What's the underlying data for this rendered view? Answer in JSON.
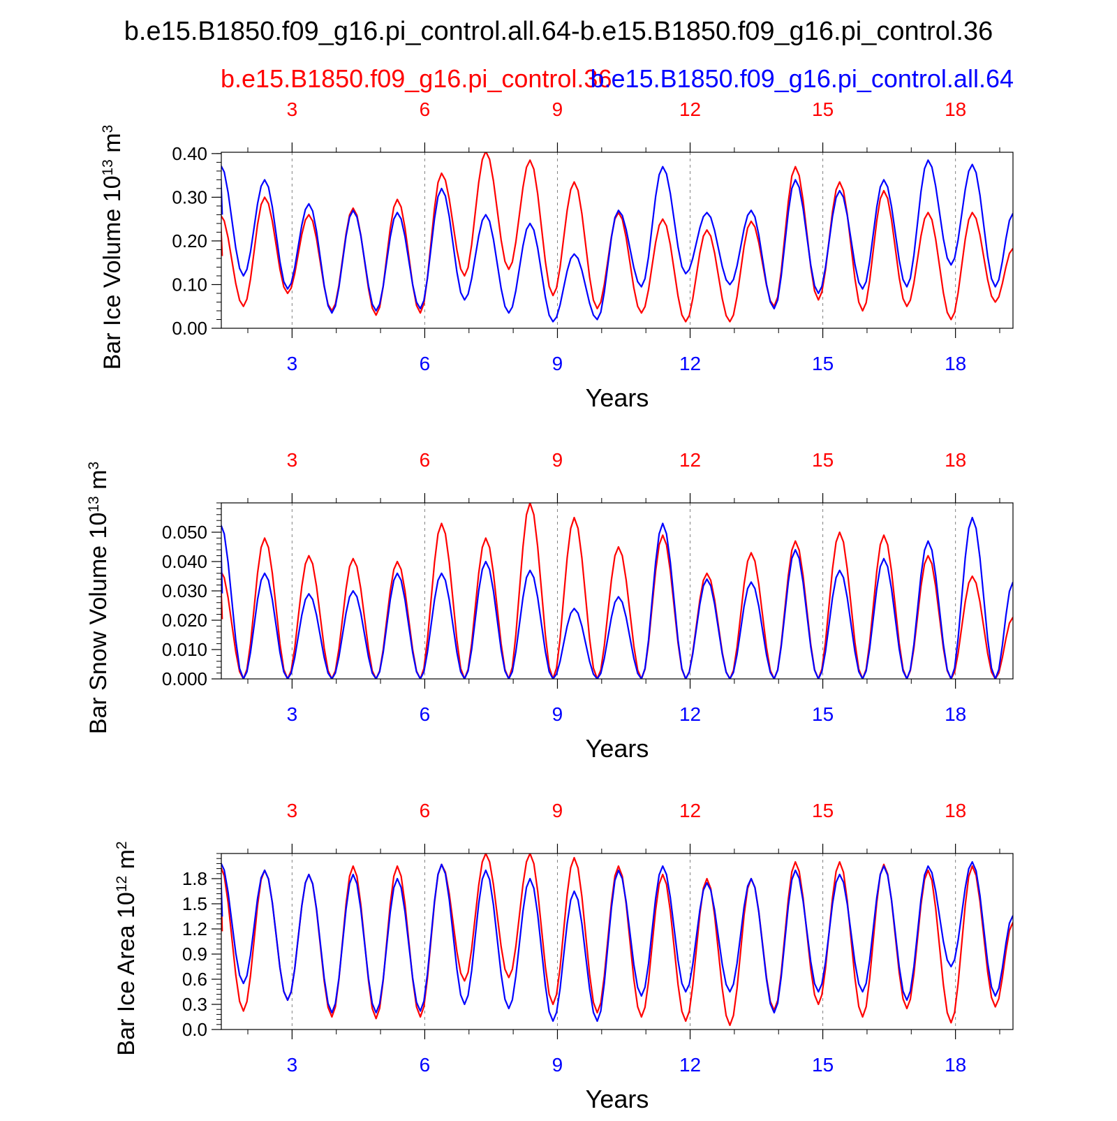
{
  "figure_title": "b.e15.B1850.f09_g16.pi_control.all.64-b.e15.B1850.f09_g16.pi_control.36",
  "legend": {
    "red_label": "b.e15.B1850.f09_g16.pi_control.36",
    "blue_label": "b.e15.B1850.f09_g16.pi_control.all.64"
  },
  "colors": {
    "red": "#ff0000",
    "blue": "#0000ff",
    "axis": "#000000",
    "grid": "#808080"
  },
  "chart_data": [
    {
      "type": "line",
      "name": "bar-ice-volume",
      "ylabel_main": "Bar Ice Volume 10",
      "ylabel_sup": "13",
      "ylabel_unit": " m",
      "ylabel_unit_sup": "3",
      "xlabel": "Years",
      "xlim": [
        1.4,
        19.3
      ],
      "ylim": [
        0.0,
        0.403
      ],
      "yticks": [
        0.0,
        0.1,
        0.2,
        0.3,
        0.4
      ],
      "ytick_labels": [
        "0.00",
        "0.10",
        "0.20",
        "0.30",
        "0.40"
      ],
      "yminor_step": 0.02,
      "xticks": [
        3,
        6,
        9,
        12,
        15,
        18
      ],
      "xtick_labels": [
        "3",
        "6",
        "9",
        "12",
        "15",
        "18"
      ],
      "series": [
        {
          "name": "b.e15.B1850.f09_g16.pi_control.36",
          "color": "red",
          "peaks": [
            [
              1.38,
              0.26
            ],
            [
              2.38,
              0.3
            ],
            [
              3.38,
              0.26
            ],
            [
              4.38,
              0.275
            ],
            [
              5.38,
              0.295
            ],
            [
              6.38,
              0.355
            ],
            [
              7.38,
              0.405
            ],
            [
              8.38,
              0.385
            ],
            [
              9.38,
              0.335
            ],
            [
              10.38,
              0.265
            ],
            [
              11.38,
              0.25
            ],
            [
              12.38,
              0.225
            ],
            [
              13.38,
              0.245
            ],
            [
              14.38,
              0.37
            ],
            [
              15.38,
              0.335
            ],
            [
              16.38,
              0.315
            ],
            [
              17.38,
              0.265
            ],
            [
              18.38,
              0.265
            ]
          ],
          "troughs": [
            [
              1.9,
              0.05
            ],
            [
              2.9,
              0.08
            ],
            [
              3.9,
              0.04
            ],
            [
              4.9,
              0.03
            ],
            [
              5.9,
              0.035
            ],
            [
              6.9,
              0.12
            ],
            [
              7.9,
              0.135
            ],
            [
              8.9,
              0.075
            ],
            [
              9.9,
              0.045
            ],
            [
              10.9,
              0.035
            ],
            [
              11.9,
              0.015
            ],
            [
              12.9,
              0.015
            ],
            [
              13.9,
              0.05
            ],
            [
              14.9,
              0.065
            ],
            [
              15.9,
              0.04
            ],
            [
              16.9,
              0.05
            ],
            [
              17.9,
              0.02
            ],
            [
              18.9,
              0.06
            ]
          ]
        },
        {
          "name": "b.e15.B1850.f09_g16.pi_control.all.64",
          "color": "blue",
          "peaks": [
            [
              1.38,
              0.375
            ],
            [
              2.38,
              0.34
            ],
            [
              3.38,
              0.285
            ],
            [
              4.38,
              0.27
            ],
            [
              5.38,
              0.265
            ],
            [
              6.38,
              0.32
            ],
            [
              7.38,
              0.26
            ],
            [
              8.38,
              0.24
            ],
            [
              9.38,
              0.17
            ],
            [
              10.38,
              0.27
            ],
            [
              11.38,
              0.37
            ],
            [
              12.38,
              0.265
            ],
            [
              13.38,
              0.27
            ],
            [
              14.38,
              0.34
            ],
            [
              15.38,
              0.315
            ],
            [
              16.38,
              0.34
            ],
            [
              17.38,
              0.385
            ],
            [
              18.38,
              0.375
            ]
          ],
          "troughs": [
            [
              1.9,
              0.12
            ],
            [
              2.9,
              0.09
            ],
            [
              3.9,
              0.035
            ],
            [
              4.9,
              0.04
            ],
            [
              5.9,
              0.045
            ],
            [
              6.9,
              0.065
            ],
            [
              7.9,
              0.035
            ],
            [
              8.9,
              0.015
            ],
            [
              9.9,
              0.02
            ],
            [
              10.9,
              0.095
            ],
            [
              11.9,
              0.125
            ],
            [
              12.9,
              0.1
            ],
            [
              13.9,
              0.045
            ],
            [
              14.9,
              0.08
            ],
            [
              15.9,
              0.09
            ],
            [
              16.9,
              0.095
            ],
            [
              17.9,
              0.145
            ],
            [
              18.9,
              0.095
            ]
          ]
        }
      ]
    },
    {
      "type": "line",
      "name": "bar-snow-volume",
      "ylabel_main": "Bar Snow Volume 10",
      "ylabel_sup": "13",
      "ylabel_unit": " m",
      "ylabel_unit_sup": "3",
      "xlabel": "Years",
      "xlim": [
        1.4,
        19.3
      ],
      "ylim": [
        0.0,
        0.06
      ],
      "yticks": [
        0.0,
        0.01,
        0.02,
        0.03,
        0.04,
        0.05
      ],
      "ytick_labels": [
        "0.000",
        "0.010",
        "0.020",
        "0.030",
        "0.040",
        "0.050"
      ],
      "yminor_step": 0.002,
      "xticks": [
        3,
        6,
        9,
        12,
        15,
        18
      ],
      "xtick_labels": [
        "3",
        "6",
        "9",
        "12",
        "15",
        "18"
      ],
      "series": [
        {
          "name": "b.e15.B1850.f09_g16.pi_control.36",
          "color": "red",
          "peaks": [
            [
              1.38,
              0.037
            ],
            [
              2.38,
              0.048
            ],
            [
              3.38,
              0.042
            ],
            [
              4.38,
              0.041
            ],
            [
              5.38,
              0.04
            ],
            [
              6.38,
              0.053
            ],
            [
              7.38,
              0.048
            ],
            [
              8.38,
              0.06
            ],
            [
              9.38,
              0.055
            ],
            [
              10.38,
              0.045
            ],
            [
              11.38,
              0.049
            ],
            [
              12.38,
              0.036
            ],
            [
              13.38,
              0.043
            ],
            [
              14.38,
              0.047
            ],
            [
              15.38,
              0.05
            ],
            [
              16.38,
              0.049
            ],
            [
              17.38,
              0.042
            ],
            [
              18.38,
              0.035
            ]
          ],
          "troughs": [
            [
              1.9,
              0.0
            ],
            [
              2.9,
              0.0
            ],
            [
              3.9,
              0.0
            ],
            [
              4.9,
              0.0
            ],
            [
              5.9,
              0.0
            ],
            [
              6.9,
              0.0
            ],
            [
              7.9,
              0.0
            ],
            [
              8.9,
              0.0
            ],
            [
              9.9,
              0.0
            ],
            [
              10.9,
              0.0
            ],
            [
              11.9,
              0.0
            ],
            [
              12.9,
              0.0
            ],
            [
              13.9,
              0.0
            ],
            [
              14.9,
              0.0
            ],
            [
              15.9,
              0.0
            ],
            [
              16.9,
              0.0
            ],
            [
              17.9,
              0.0
            ],
            [
              18.9,
              0.0
            ]
          ]
        },
        {
          "name": "b.e15.B1850.f09_g16.pi_control.all.64",
          "color": "blue",
          "peaks": [
            [
              1.38,
              0.053
            ],
            [
              2.38,
              0.036
            ],
            [
              3.38,
              0.029
            ],
            [
              4.38,
              0.03
            ],
            [
              5.38,
              0.036
            ],
            [
              6.38,
              0.036
            ],
            [
              7.38,
              0.04
            ],
            [
              8.38,
              0.037
            ],
            [
              9.38,
              0.024
            ],
            [
              10.38,
              0.028
            ],
            [
              11.38,
              0.053
            ],
            [
              12.38,
              0.034
            ],
            [
              13.38,
              0.033
            ],
            [
              14.38,
              0.044
            ],
            [
              15.38,
              0.037
            ],
            [
              16.38,
              0.041
            ],
            [
              17.38,
              0.047
            ],
            [
              18.38,
              0.055
            ]
          ],
          "troughs": [
            [
              1.9,
              0.0
            ],
            [
              2.9,
              0.0
            ],
            [
              3.9,
              0.0
            ],
            [
              4.9,
              0.0
            ],
            [
              5.9,
              0.0
            ],
            [
              6.9,
              0.0
            ],
            [
              7.9,
              0.0
            ],
            [
              8.9,
              0.0
            ],
            [
              9.9,
              0.0
            ],
            [
              10.9,
              0.0
            ],
            [
              11.9,
              0.0
            ],
            [
              12.9,
              0.0
            ],
            [
              13.9,
              0.0
            ],
            [
              14.9,
              0.0
            ],
            [
              15.9,
              0.0
            ],
            [
              16.9,
              0.0
            ],
            [
              17.9,
              0.0
            ],
            [
              18.9,
              0.0
            ]
          ]
        }
      ]
    },
    {
      "type": "line",
      "name": "bar-ice-area",
      "ylabel_main": "Bar Ice Area 10",
      "ylabel_sup": "12",
      "ylabel_unit": " m",
      "ylabel_unit_sup": "2",
      "xlabel": "Years",
      "xlim": [
        1.4,
        19.3
      ],
      "ylim": [
        0.0,
        2.1
      ],
      "yticks": [
        0.0,
        0.3,
        0.6,
        0.9,
        1.2,
        1.5,
        1.8
      ],
      "ytick_labels": [
        "0.0",
        "0.3",
        "0.6",
        "0.9",
        "1.2",
        "1.5",
        "1.8"
      ],
      "yminor_step": 0.06,
      "xticks": [
        3,
        6,
        9,
        12,
        15,
        18
      ],
      "xtick_labels": [
        "3",
        "6",
        "9",
        "12",
        "15",
        "18"
      ],
      "series": [
        {
          "name": "b.e15.B1850.f09_g16.pi_control.36",
          "color": "red",
          "peaks": [
            [
              1.38,
              1.95
            ],
            [
              2.38,
              1.9
            ],
            [
              3.38,
              1.85
            ],
            [
              4.38,
              1.95
            ],
            [
              5.38,
              1.95
            ],
            [
              6.38,
              1.97
            ],
            [
              7.38,
              2.1
            ],
            [
              8.38,
              2.1
            ],
            [
              9.38,
              2.05
            ],
            [
              10.38,
              1.95
            ],
            [
              11.38,
              1.85
            ],
            [
              12.38,
              1.8
            ],
            [
              13.38,
              1.8
            ],
            [
              14.38,
              2.0
            ],
            [
              15.38,
              2.0
            ],
            [
              16.38,
              1.97
            ],
            [
              17.38,
              1.9
            ],
            [
              18.38,
              1.95
            ]
          ],
          "troughs": [
            [
              1.9,
              0.22
            ],
            [
              2.9,
              0.35
            ],
            [
              3.9,
              0.15
            ],
            [
              4.9,
              0.13
            ],
            [
              5.9,
              0.15
            ],
            [
              6.9,
              0.58
            ],
            [
              7.9,
              0.62
            ],
            [
              8.9,
              0.3
            ],
            [
              9.9,
              0.2
            ],
            [
              10.9,
              0.15
            ],
            [
              11.9,
              0.1
            ],
            [
              12.9,
              0.05
            ],
            [
              13.9,
              0.23
            ],
            [
              14.9,
              0.3
            ],
            [
              15.9,
              0.15
            ],
            [
              16.9,
              0.25
            ],
            [
              17.9,
              0.08
            ],
            [
              18.9,
              0.27
            ]
          ]
        },
        {
          "name": "b.e15.B1850.f09_g16.pi_control.all.64",
          "color": "blue",
          "peaks": [
            [
              1.38,
              2.0
            ],
            [
              2.38,
              1.9
            ],
            [
              3.38,
              1.85
            ],
            [
              4.38,
              1.85
            ],
            [
              5.38,
              1.8
            ],
            [
              6.38,
              1.97
            ],
            [
              7.38,
              1.9
            ],
            [
              8.38,
              1.8
            ],
            [
              9.38,
              1.65
            ],
            [
              10.38,
              1.9
            ],
            [
              11.38,
              1.95
            ],
            [
              12.38,
              1.75
            ],
            [
              13.38,
              1.8
            ],
            [
              14.38,
              1.9
            ],
            [
              15.38,
              1.85
            ],
            [
              16.38,
              1.95
            ],
            [
              17.38,
              1.95
            ],
            [
              18.38,
              2.0
            ]
          ],
          "troughs": [
            [
              1.9,
              0.55
            ],
            [
              2.9,
              0.35
            ],
            [
              3.9,
              0.2
            ],
            [
              4.9,
              0.2
            ],
            [
              5.9,
              0.22
            ],
            [
              6.9,
              0.3
            ],
            [
              7.9,
              0.25
            ],
            [
              8.9,
              0.1
            ],
            [
              9.9,
              0.1
            ],
            [
              10.9,
              0.4
            ],
            [
              11.9,
              0.45
            ],
            [
              12.9,
              0.45
            ],
            [
              13.9,
              0.2
            ],
            [
              14.9,
              0.45
            ],
            [
              15.9,
              0.45
            ],
            [
              16.9,
              0.35
            ],
            [
              17.9,
              0.75
            ],
            [
              18.9,
              0.4
            ]
          ]
        }
      ]
    }
  ]
}
